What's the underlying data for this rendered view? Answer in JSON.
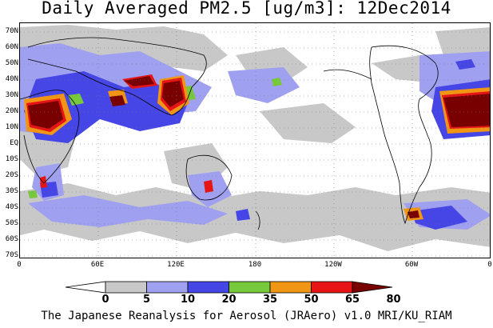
{
  "title": "Daily Averaged PM2.5 [ug/m3]: 12Dec2014",
  "lat_labels": [
    "70N",
    "60N",
    "50N",
    "40N",
    "30N",
    "20N",
    "10N",
    "EQ",
    "10S",
    "20S",
    "30S",
    "40S",
    "50S",
    "60S",
    "70S"
  ],
  "lon_labels": [
    "0",
    "60E",
    "120E",
    "180",
    "120W",
    "60W",
    "0"
  ],
  "colorbar": {
    "labels": [
      "0",
      "5",
      "10",
      "20",
      "35",
      "50",
      "65",
      "80"
    ],
    "colors": [
      "#ffffff",
      "#c8c8c8",
      "#a0a0f0",
      "#4646e6",
      "#78c83c",
      "#f09614",
      "#e61414",
      "#780000"
    ]
  },
  "footer": "The Japanese Reanalysis for Aerosol (JRAero) v1.0 MRI/KU_RIAM"
}
